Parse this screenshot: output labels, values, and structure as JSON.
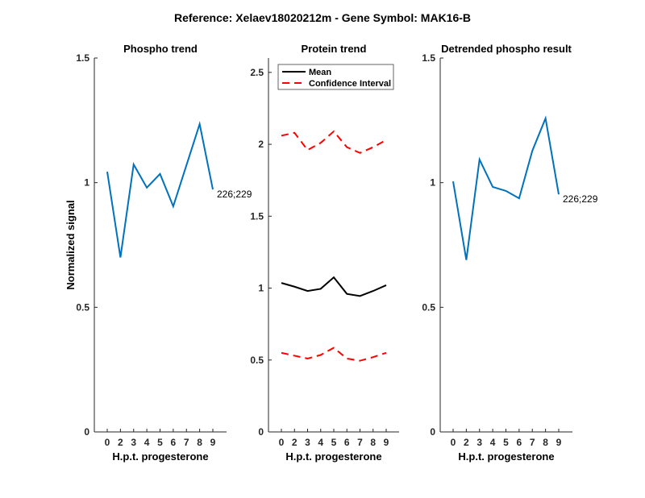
{
  "title": "Reference:  Xelaev18020212m - Gene Symbol:  MAK16-B",
  "chart_data": [
    {
      "type": "line",
      "title": "Phospho trend",
      "xlabel": "H.p.t. progesterone",
      "ylabel": "Normalized signal",
      "categories": [
        "0",
        "2",
        "3",
        "4",
        "5",
        "6",
        "7",
        "8",
        "9"
      ],
      "ylim": [
        0,
        1.5
      ],
      "yticks": [
        "0",
        "0.5",
        "1",
        "1.5"
      ],
      "series": [
        {
          "name": "226;229",
          "color": "#0072BD",
          "values": [
            1.044,
            0.7,
            1.073,
            0.98,
            1.035,
            0.905,
            1.07,
            1.235,
            0.973
          ]
        }
      ],
      "end_label": "226;229"
    },
    {
      "type": "line",
      "title": "Protein trend",
      "xlabel": "H.p.t. progesterone",
      "ylabel": "",
      "categories": [
        "0",
        "2",
        "3",
        "4",
        "5",
        "6",
        "7",
        "8",
        "9"
      ],
      "ylim": [
        0,
        2.6
      ],
      "yticks": [
        "0",
        "0.5",
        "1",
        "1.5",
        "2",
        "2.5"
      ],
      "legend": {
        "placement": "top-left",
        "entries": [
          "Mean",
          "Confidence Interval"
        ]
      },
      "series": [
        {
          "name": "Mean",
          "color": "#000000",
          "dashed": false,
          "values": [
            1.036,
            1.01,
            0.98,
            0.995,
            1.075,
            0.96,
            0.945,
            0.98,
            1.02
          ]
        },
        {
          "name": "Confidence Interval",
          "color": "#FF0000",
          "dashed": true,
          "values": [
            2.06,
            2.08,
            1.96,
            2.01,
            2.09,
            1.98,
            1.94,
            1.98,
            2.03
          ]
        },
        {
          "name": "Confidence Interval",
          "color": "#FF0000",
          "dashed": true,
          "values": [
            0.55,
            0.53,
            0.51,
            0.535,
            0.585,
            0.51,
            0.495,
            0.52,
            0.55
          ]
        }
      ]
    },
    {
      "type": "line",
      "title": "Detrended phospho result",
      "xlabel": "H.p.t. progesterone",
      "ylabel": "",
      "categories": [
        "0",
        "2",
        "3",
        "4",
        "5",
        "6",
        "7",
        "8",
        "9"
      ],
      "ylim": [
        0,
        1.5
      ],
      "yticks": [
        "0",
        "0.5",
        "1",
        "1.5"
      ],
      "series": [
        {
          "name": "226;229",
          "color": "#0072BD",
          "values": [
            1.005,
            0.69,
            1.093,
            0.983,
            0.967,
            0.937,
            1.128,
            1.258,
            0.953
          ]
        }
      ],
      "end_label": "226;229"
    }
  ]
}
